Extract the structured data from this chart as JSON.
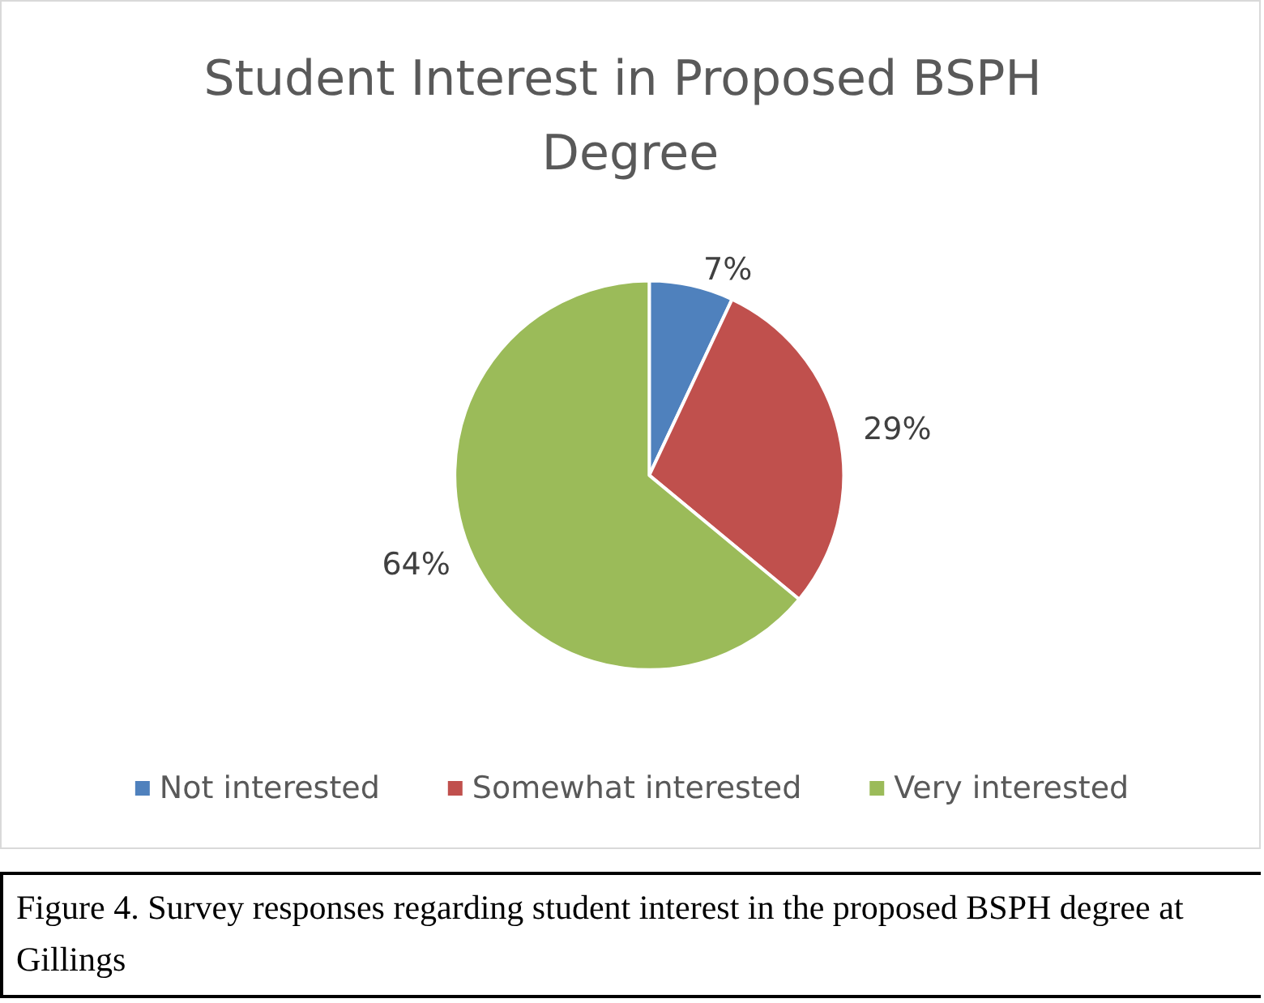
{
  "chart_data": {
    "type": "pie",
    "title": "Student Interest in Proposed BSPH Degree",
    "categories": [
      "Not interested",
      "Somewhat interested",
      "Very interested"
    ],
    "values": [
      7,
      29,
      64
    ],
    "colors": [
      "#4f81bd",
      "#c0504d",
      "#9bbb59"
    ],
    "value_labels": [
      "7%",
      "29%",
      "64%"
    ],
    "legend": "bottom",
    "annotations": [
      "Figure 4. Survey responses regarding student interest in the proposed BSPH degree at Gillings"
    ]
  }
}
